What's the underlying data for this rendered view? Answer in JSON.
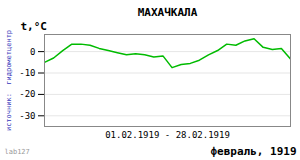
{
  "chart_data": {
    "type": "line",
    "title": "МАХАЧКАЛА",
    "xlabel": "01.02.1919 - 28.02.1919",
    "ylabel": "t,°C",
    "annotations": [
      "источник:  гидрометцентр",
      "lab127",
      "февраль, 1919"
    ],
    "x": [
      1,
      2,
      3,
      4,
      5,
      6,
      7,
      8,
      9,
      10,
      11,
      12,
      13,
      14,
      15,
      16,
      17,
      18,
      19,
      20,
      21,
      22,
      23,
      24,
      25,
      26,
      27,
      28
    ],
    "values": [
      -5.0,
      -3.0,
      0.5,
      3.5,
      3.5,
      3.0,
      1.5,
      0.5,
      -0.5,
      -1.5,
      -1.0,
      -1.5,
      -2.5,
      -2.0,
      -7.5,
      -6.0,
      -5.5,
      -4.0,
      -1.5,
      0.5,
      3.5,
      3.0,
      5.0,
      6.0,
      2.0,
      1.0,
      1.5,
      -3.5
    ],
    "color": "#00bb00",
    "xlim": [
      1,
      28
    ],
    "xticks": [],
    "ylim": [
      -35,
      8
    ],
    "yticks": [
      0,
      -10,
      -20,
      -30
    ],
    "grid": true,
    "tick_labels": "y"
  }
}
